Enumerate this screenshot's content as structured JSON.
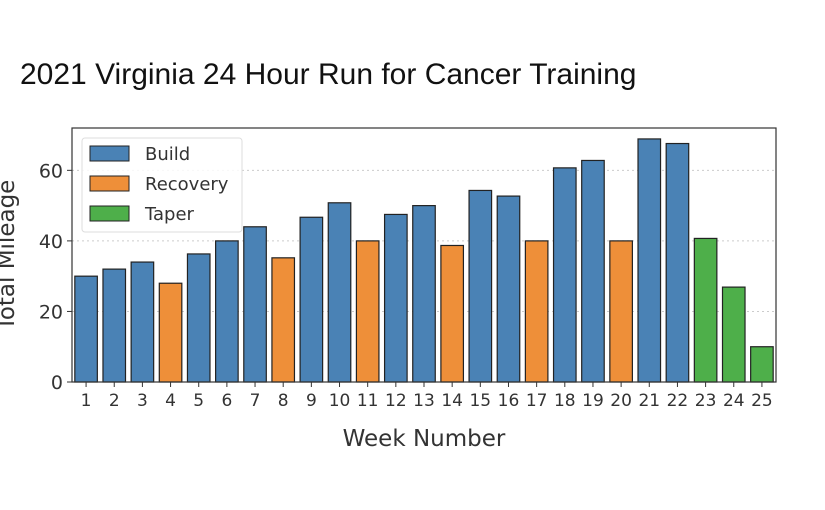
{
  "chart_data": {
    "type": "bar",
    "title": "2021 Virginia 24 Hour Run for Cancer Training",
    "xlabel": "Week Number",
    "ylabel": "Total Mileage",
    "ylim": [
      0,
      72
    ],
    "yticks": [
      0,
      20,
      40,
      60
    ],
    "grid": "y-dotted",
    "legend_position": "top-left",
    "categories": [
      "1",
      "2",
      "3",
      "4",
      "5",
      "6",
      "7",
      "8",
      "9",
      "10",
      "11",
      "12",
      "13",
      "14",
      "15",
      "16",
      "17",
      "18",
      "19",
      "20",
      "21",
      "22",
      "23",
      "24",
      "25"
    ],
    "values": [
      30,
      32,
      34,
      28,
      36.3,
      40,
      44,
      35.2,
      46.7,
      50.8,
      40,
      47.5,
      50,
      38.7,
      54.3,
      52.7,
      40,
      60.7,
      62.8,
      40,
      68.9,
      67.6,
      40.7,
      26.9,
      10
    ],
    "phases": [
      "Build",
      "Build",
      "Build",
      "Recovery",
      "Build",
      "Build",
      "Build",
      "Recovery",
      "Build",
      "Build",
      "Recovery",
      "Build",
      "Build",
      "Recovery",
      "Build",
      "Build",
      "Recovery",
      "Build",
      "Build",
      "Recovery",
      "Build",
      "Build",
      "Taper",
      "Taper",
      "Taper"
    ],
    "legend": [
      {
        "name": "Build",
        "color": "#4a82b5"
      },
      {
        "name": "Recovery",
        "color": "#ee8f39"
      },
      {
        "name": "Taper",
        "color": "#4eaf4a"
      }
    ]
  }
}
